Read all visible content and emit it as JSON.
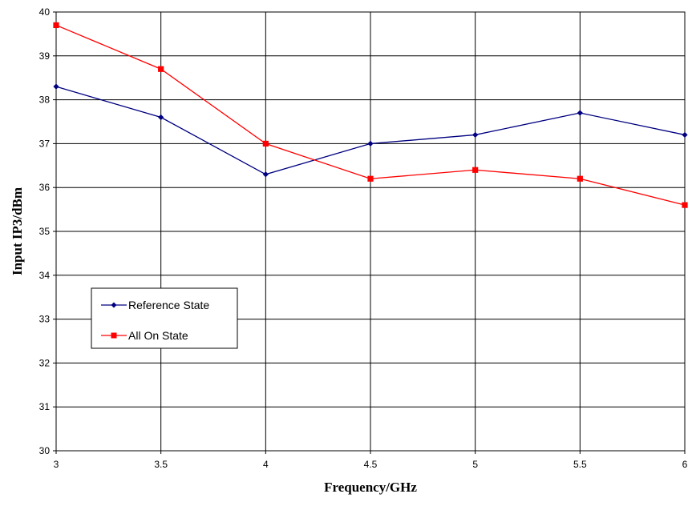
{
  "chart_data": {
    "type": "line",
    "title": "",
    "xlabel": "Frequency/GHz",
    "ylabel": "Input IP3/dBm",
    "x": [
      3,
      3.5,
      4,
      4.5,
      5,
      5.5,
      6
    ],
    "x_tick_labels": [
      "3",
      "3.5",
      "4",
      "4.5",
      "5",
      "5.5",
      "6"
    ],
    "y_tick_labels": [
      "30",
      "31",
      "32",
      "33",
      "34",
      "35",
      "36",
      "37",
      "38",
      "39",
      "40"
    ],
    "xlim": [
      3,
      6
    ],
    "ylim": [
      30,
      40
    ],
    "grid": true,
    "legend_position": "middle-left",
    "series": [
      {
        "name": "Reference State",
        "color": "#000080",
        "marker": "diamond",
        "values": [
          38.3,
          37.6,
          36.3,
          37.0,
          37.2,
          37.7,
          37.2
        ]
      },
      {
        "name": "All On State",
        "color": "#ff0000",
        "marker": "square",
        "values": [
          39.7,
          38.7,
          37.0,
          36.2,
          36.4,
          36.2,
          35.6
        ]
      }
    ]
  }
}
